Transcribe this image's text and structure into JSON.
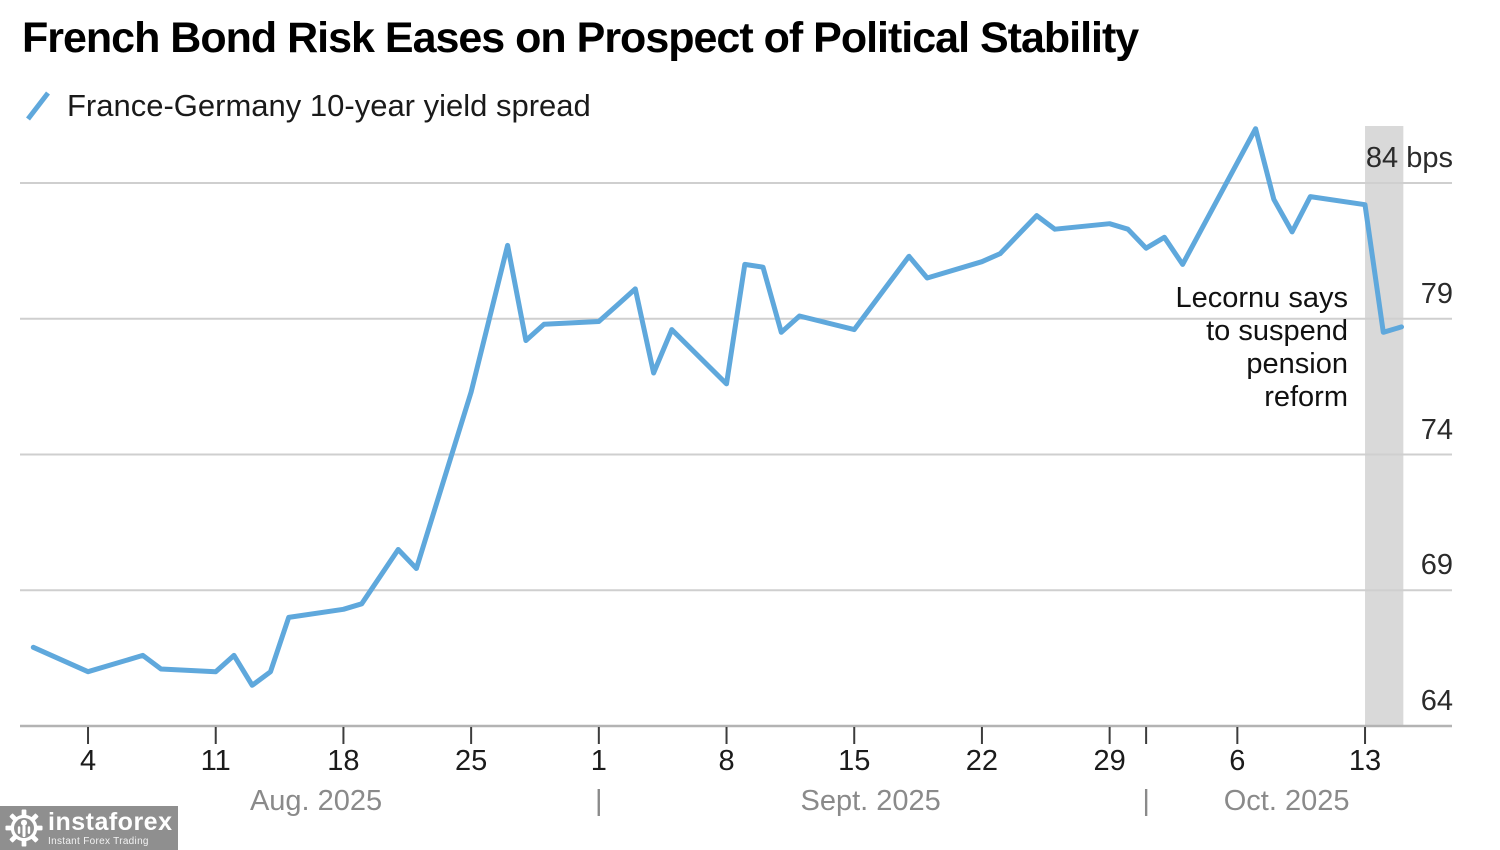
{
  "header": {
    "title": "French Bond Risk Eases on Prospect of Political Stability"
  },
  "legend": {
    "label": "France-Germany 10-year yield spread"
  },
  "watermark": {
    "brand": "instaforex",
    "tagline": "Instant Forex Trading"
  },
  "colors": {
    "line": "#5FA8DC",
    "highlight_band": "#D9D9D9",
    "gridline": "#CFCFCF",
    "axis_line": "#B3B3B3",
    "tick": "#3C3C3C",
    "day_label": "#1B1B1B",
    "month_label": "#8A8A8A",
    "y_label": "#2B2B2B",
    "watermark_bg": "#8F8F8F"
  },
  "chart_data": {
    "type": "line",
    "title": "French Bond Risk Eases on Prospect of Political Stability",
    "legend_position": "top-left",
    "grid": true,
    "unit": "bps",
    "y_axis": {
      "range": [
        63,
        87
      ],
      "ticks": [
        {
          "value": 84,
          "label": "84 bps"
        },
        {
          "value": 79,
          "label": "79"
        },
        {
          "value": 74,
          "label": "74"
        },
        {
          "value": 69,
          "label": "69"
        },
        {
          "value": 64,
          "label": "64"
        }
      ]
    },
    "x_axis": {
      "start_date": "Aug 1, 2025",
      "end_date": "Oct 15, 2025",
      "ticks": [
        {
          "day": 3,
          "label": "4"
        },
        {
          "day": 10,
          "label": "11"
        },
        {
          "day": 17,
          "label": "18"
        },
        {
          "day": 24,
          "label": "25"
        },
        {
          "day": 31,
          "label": "1"
        },
        {
          "day": 38,
          "label": "8"
        },
        {
          "day": 45,
          "label": "15"
        },
        {
          "day": 52,
          "label": "22"
        },
        {
          "day": 59,
          "label": "29"
        },
        {
          "day": 61,
          "label": ""
        },
        {
          "day": 66,
          "label": "6"
        },
        {
          "day": 73,
          "label": "13"
        }
      ],
      "months": [
        {
          "label": "Aug. 2025",
          "center_day": 15.5
        },
        {
          "label": "Sept. 2025",
          "center_day": 45.9
        },
        {
          "label": "Oct. 2025",
          "center_day": 68.7
        }
      ],
      "separators": [
        31,
        61
      ]
    },
    "highlight_band": {
      "from_day": 73,
      "to_day": 75.1
    },
    "annotation": {
      "text": "Lecornu says\nto suspend\npension\nreform"
    },
    "series": [
      {
        "name": "France-Germany 10-year yield spread",
        "points": [
          {
            "date": "Aug 1",
            "day": 0,
            "value": 66.9
          },
          {
            "date": "Aug 4",
            "day": 3,
            "value": 66.0
          },
          {
            "date": "Aug 7",
            "day": 6,
            "value": 66.6
          },
          {
            "date": "Aug 8",
            "day": 7,
            "value": 66.1
          },
          {
            "date": "Aug 11",
            "day": 10,
            "value": 66.0
          },
          {
            "date": "Aug 12",
            "day": 11,
            "value": 66.6
          },
          {
            "date": "Aug 13",
            "day": 12,
            "value": 65.5
          },
          {
            "date": "Aug 14",
            "day": 13,
            "value": 66.0
          },
          {
            "date": "Aug 15",
            "day": 14,
            "value": 68.0
          },
          {
            "date": "Aug 18",
            "day": 17,
            "value": 68.3
          },
          {
            "date": "Aug 19",
            "day": 18,
            "value": 68.5
          },
          {
            "date": "Aug 21",
            "day": 20,
            "value": 70.5
          },
          {
            "date": "Aug 22",
            "day": 21,
            "value": 69.8
          },
          {
            "date": "Aug 25",
            "day": 24,
            "value": 76.3
          },
          {
            "date": "Aug 27",
            "day": 26,
            "value": 81.7
          },
          {
            "date": "Aug 28",
            "day": 27,
            "value": 78.2
          },
          {
            "date": "Aug 29",
            "day": 28,
            "value": 78.8
          },
          {
            "date": "Sep 1",
            "day": 31,
            "value": 78.9
          },
          {
            "date": "Sep 2",
            "day": 32,
            "value": 79.5
          },
          {
            "date": "Sep 3",
            "day": 33,
            "value": 80.1
          },
          {
            "date": "Sep 4",
            "day": 34,
            "value": 77.0
          },
          {
            "date": "Sep 5",
            "day": 35,
            "value": 78.6
          },
          {
            "date": "Sep 8",
            "day": 38,
            "value": 76.6
          },
          {
            "date": "Sep 9",
            "day": 39,
            "value": 81.0
          },
          {
            "date": "Sep 10",
            "day": 40,
            "value": 80.9
          },
          {
            "date": "Sep 11",
            "day": 41,
            "value": 78.5
          },
          {
            "date": "Sep 12",
            "day": 42,
            "value": 79.1
          },
          {
            "date": "Sep 15",
            "day": 45,
            "value": 78.6
          },
          {
            "date": "Sep 18",
            "day": 48,
            "value": 81.3
          },
          {
            "date": "Sep 19",
            "day": 49,
            "value": 80.5
          },
          {
            "date": "Sep 22",
            "day": 52,
            "value": 81.1
          },
          {
            "date": "Sep 23",
            "day": 53,
            "value": 81.4
          },
          {
            "date": "Sep 25",
            "day": 55,
            "value": 82.8
          },
          {
            "date": "Sep 26",
            "day": 56,
            "value": 82.3
          },
          {
            "date": "Sep 29",
            "day": 59,
            "value": 82.5
          },
          {
            "date": "Sep 30",
            "day": 60,
            "value": 82.3
          },
          {
            "date": "Oct 1",
            "day": 61,
            "value": 81.6
          },
          {
            "date": "Oct 2",
            "day": 62,
            "value": 82.0
          },
          {
            "date": "Oct 3",
            "day": 63,
            "value": 81.0
          },
          {
            "date": "Oct 7",
            "day": 67,
            "value": 86.0
          },
          {
            "date": "Oct 8",
            "day": 68,
            "value": 83.4
          },
          {
            "date": "Oct 9",
            "day": 69,
            "value": 82.2
          },
          {
            "date": "Oct 10",
            "day": 70,
            "value": 83.5
          },
          {
            "date": "Oct 13",
            "day": 73,
            "value": 83.2
          },
          {
            "date": "Oct 14",
            "day": 74,
            "value": 78.5
          },
          {
            "date": "Oct 15",
            "day": 75,
            "value": 78.7
          }
        ]
      }
    ]
  }
}
